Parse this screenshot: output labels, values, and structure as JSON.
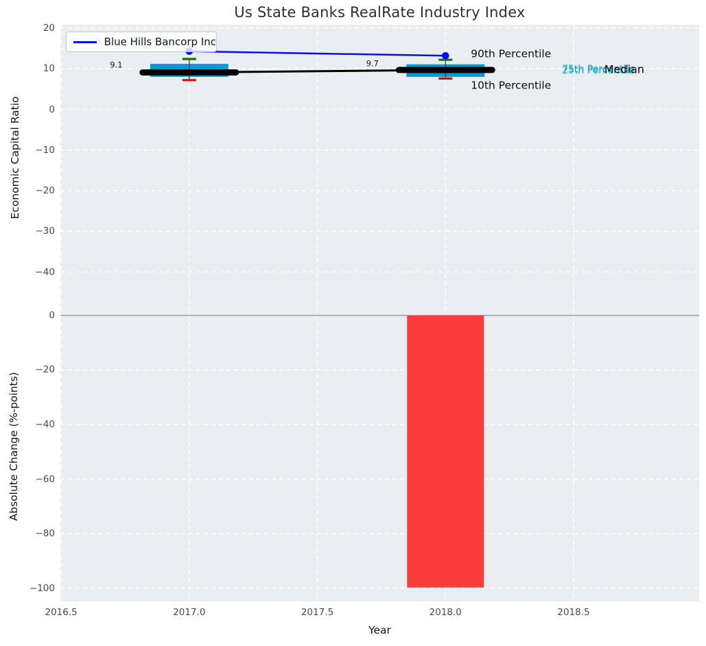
{
  "chart_data": {
    "type": "combo-boxplot-line-bar",
    "title": "Us State Banks RealRate Industry Index",
    "xlabel": "Year",
    "xlim": [
      2016.497,
      2018.99
    ],
    "xticks": {
      "values": [
        2016.5,
        2017.0,
        2017.5,
        2018.0,
        2018.5
      ],
      "labels": [
        "2016.5",
        "2017.0",
        "2017.5",
        "2018.0",
        "2018.5"
      ]
    },
    "legend": {
      "label": "Blue Hills Bancorp Inc",
      "line_color": "#0a0aff",
      "position": "upper left"
    },
    "grid": {
      "style": "dashed",
      "color": "#ffffff"
    },
    "colors": {
      "box": "#089bd1",
      "cap_high": "#007d00",
      "cap_low": "#e80000",
      "whisker": "#3f3f3f",
      "median": "#000000",
      "company": "#0a0aff",
      "bar": "#f93c3c",
      "background": "#e9eef0",
      "grid": "#ffffff",
      "zero_line": "#a6a6a6",
      "tick": "#3d4c63"
    },
    "panels": [
      {
        "id": "economic-capital-ratio",
        "ylabel": "Economic Capital Ratio",
        "ylim": [
          -44.8,
          20.84
        ],
        "yticks": {
          "values": [
            20,
            10,
            0,
            -10,
            -20,
            -30,
            -40
          ],
          "labels": [
            "20",
            "10",
            "0",
            "−10",
            "−20",
            "−30",
            "−40"
          ]
        },
        "boxplots": [
          {
            "year": 2017,
            "median": 9.1,
            "q1": 8.0,
            "q3": 11.2,
            "p10": 7.2,
            "p90": 12.4
          },
          {
            "year": 2018,
            "median": 9.7,
            "q1": 8.0,
            "q3": 11.1,
            "p10": 7.6,
            "p90": 12.2
          }
        ],
        "median_line": {
          "x": [
            2017,
            2018
          ],
          "y": [
            9.1,
            9.7
          ]
        },
        "company_line": {
          "name": "Blue Hills Bancorp Inc",
          "x": [
            2017,
            2018
          ],
          "y": [
            14.3,
            13.2
          ]
        },
        "annotations": [
          {
            "text": "9.1",
            "year": 2016.715,
            "value": 11.0,
            "size": 11.5,
            "color": "#111111",
            "anchor": "middle"
          },
          {
            "text": "9.7",
            "year": 2017.715,
            "value": 11.3,
            "size": 11.5,
            "color": "#111111",
            "anchor": "middle"
          },
          {
            "text": "90th Percentile",
            "year": 2018.099,
            "value": 13.7,
            "size": 15.5,
            "color": "#0d0d0d",
            "anchor": "start"
          },
          {
            "text": "10th Percentile",
            "year": 2018.099,
            "value": 6.0,
            "size": 15.5,
            "color": "#0d0d0d",
            "anchor": "start"
          },
          {
            "text": "75th Percentile",
            "year": 2018.455,
            "value": 10.05,
            "size": 14,
            "color": "#17a2cb",
            "anchor": "start"
          },
          {
            "text": "25th Percentile",
            "year": 2018.455,
            "value": 9.7,
            "size": 14,
            "color": "#17a2cb",
            "anchor": "start"
          },
          {
            "text": "Median",
            "year": 2018.62,
            "value": 9.9,
            "size": 16,
            "color": "#000000",
            "anchor": "start"
          }
        ]
      },
      {
        "id": "absolute-change",
        "ylabel": "Absolute Change (%-points)",
        "ylim": [
          -104.9,
          8.8
        ],
        "yticks": {
          "values": [
            0,
            -20,
            -40,
            -60,
            -80,
            -100
          ],
          "labels": [
            "0",
            "−20",
            "−40",
            "−60",
            "−80",
            "−100"
          ]
        },
        "zero_line": true,
        "bars": [
          {
            "year": 2018,
            "value": -99.8,
            "width": 0.3
          }
        ]
      }
    ]
  }
}
